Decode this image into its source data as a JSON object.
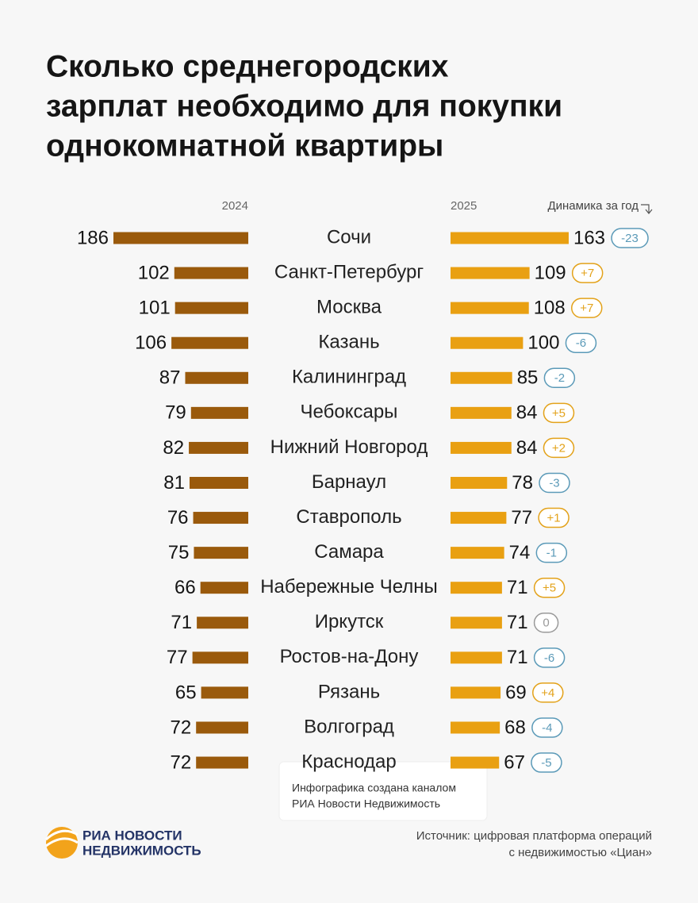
{
  "chart_data": {
    "type": "butterfly",
    "title": [
      "Сколько среднегородских",
      "зарплат необходимо для покупки",
      "однокомнатной квартиры"
    ],
    "categories": [
      "Сочи",
      "Санкт-Петербург",
      "Москва",
      "Казань",
      "Калининград",
      "Чебоксары",
      "Нижний Новгород",
      "Барнаул",
      "Ставрополь",
      "Самара",
      "Набережные Челны",
      "Иркутск",
      "Ростов-на-Дону",
      "Рязань",
      "Волгоград",
      "Краснодар"
    ],
    "series": [
      {
        "name": "2024",
        "color": "#9a5a0c",
        "values": [
          186,
          102,
          101,
          106,
          87,
          79,
          82,
          81,
          76,
          75,
          66,
          71,
          77,
          65,
          72,
          72
        ]
      },
      {
        "name": "2025",
        "color": "#e9a012",
        "values": [
          163,
          109,
          108,
          100,
          85,
          84,
          84,
          78,
          77,
          74,
          71,
          71,
          71,
          69,
          68,
          67
        ]
      }
    ],
    "change": {
      "name": "Динамика за год",
      "values": [
        -23,
        7,
        7,
        -6,
        -2,
        5,
        2,
        -3,
        1,
        -1,
        5,
        0,
        -6,
        4,
        -4,
        -5
      ],
      "value_labels": [
        "-23",
        "+7",
        "+7",
        "-6",
        "-2",
        "+5",
        "+2",
        "-3",
        "+1",
        "-1",
        "+5",
        "0",
        "-6",
        "+4",
        "-4",
        "-5"
      ],
      "colors": {
        "up": "#e3a21a",
        "down": "#5b9ab8",
        "zero": "#9a9a9a"
      }
    },
    "credit": [
      "Инфографика создана каналом",
      "РИА Новости Недвижимость"
    ],
    "logo": [
      "РИА НОВОСТИ",
      "НЕДВИЖИМОСТЬ"
    ],
    "source": [
      "Источник: цифровая платформа операций",
      "с недвижимостью «Циан»"
    ]
  }
}
